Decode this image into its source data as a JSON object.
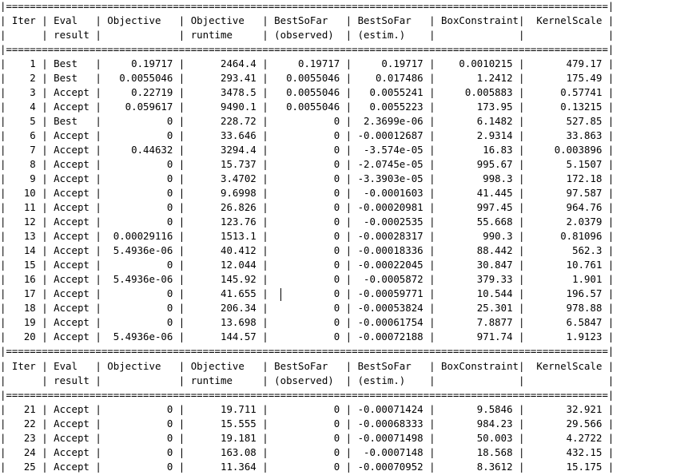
{
  "console": {
    "lines": [
      "|=====================================================================================================|",
      "| Iter | Eval   | Objective   | Objective   | BestSoFar   | BestSoFar   | BoxConstraint|  KernelScale |",
      "|      | result |             | runtime     | (observed)  | (estim.)    |              |              |",
      "|=====================================================================================================|",
      "|    1 | Best   |     0.19717 |      2464.4 |     0.19717 |     0.19717 |    0.0010215 |       479.17 |",
      "|    2 | Best   |   0.0055046 |      293.41 |   0.0055046 |    0.017486 |       1.2412 |       175.49 |",
      "|    3 | Accept |     0.22719 |      3478.5 |   0.0055046 |   0.0055241 |     0.005883 |      0.57741 |",
      "|    4 | Accept |    0.059617 |      9490.1 |   0.0055046 |   0.0055223 |       173.95 |      0.13215 |",
      "|    5 | Best   |           0 |      228.72 |           0 |  2.3699e-06 |       6.1482 |       527.85 |",
      "|    6 | Accept |           0 |      33.646 |           0 | -0.00012687 |       2.9314 |       33.863 |",
      "|    7 | Accept |     0.44632 |      3294.4 |           0 |  -3.574e-05 |        16.83 |     0.003896 |",
      "|    8 | Accept |           0 |      15.737 |           0 | -2.0745e-05 |       995.67 |       5.1507 |",
      "|    9 | Accept |           0 |      3.4702 |           0 | -3.3903e-05 |        998.3 |       172.18 |",
      "|   10 | Accept |           0 |      9.6998 |           0 |  -0.0001603 |       41.445 |       97.587 |",
      "|   11 | Accept |           0 |      26.826 |           0 | -0.00020981 |       997.45 |       964.76 |",
      "|   12 | Accept |           0 |      123.76 |           0 |  -0.0002535 |       55.668 |       2.0379 |",
      "|   13 | Accept |  0.00029116 |      1513.1 |           0 | -0.00028317 |        990.3 |      0.81096 |",
      "|   14 | Accept |  5.4936e-06 |      40.412 |           0 | -0.00018336 |       88.442 |        562.3 |",
      "|   15 | Accept |           0 |      12.044 |           0 | -0.00022045 |       30.847 |       10.761 |",
      "|   16 | Accept |  5.4936e-06 |      145.92 |           0 |  -0.0005872 |       379.33 |        1.901 |",
      "|   17 | Accept |           0 |      41.655 |           0 | -0.00059771 |       10.544 |       196.57 |",
      "|   18 | Accept |           0 |      206.34 |           0 | -0.00053824 |       25.301 |       978.88 |",
      "|   19 | Accept |           0 |      13.698 |           0 | -0.00061754 |       7.8877 |       6.5847 |",
      "|   20 | Accept |  5.4936e-06 |      144.57 |           0 | -0.00072188 |       971.74 |       1.9123 |",
      "|=====================================================================================================|",
      "| Iter | Eval   | Objective   | Objective   | BestSoFar   | BestSoFar   | BoxConstraint|  KernelScale |",
      "|      | result |             | runtime     | (observed)  | (estim.)    |              |              |",
      "|=====================================================================================================|",
      "|   21 | Accept |           0 |      19.711 |           0 | -0.00071424 |       9.5846 |       32.921 |",
      "|   22 | Accept |           0 |      15.555 |           0 | -0.00068333 |       984.23 |       29.566 |",
      "|   23 | Accept |           0 |      19.181 |           0 | -0.00071498 |       50.003 |       4.2722 |",
      "|   24 | Accept |           0 |      163.08 |           0 |  -0.0007148 |       18.568 |       432.15 |",
      "|   25 | Accept |           0 |      11.364 |           0 | -0.00070952 |       8.3612 |       15.175 |"
    ]
  }
}
